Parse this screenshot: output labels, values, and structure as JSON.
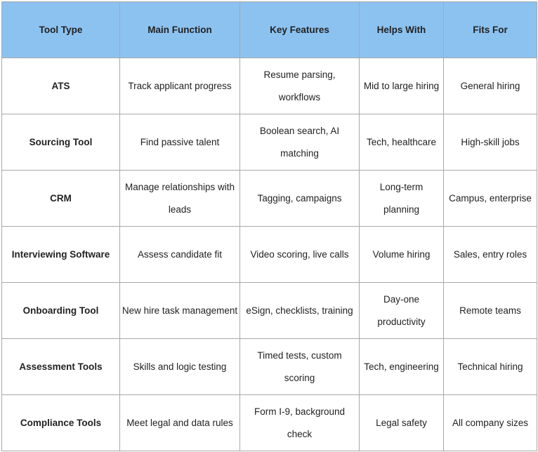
{
  "table": {
    "header": [
      "Tool Type",
      "Main Function",
      "Key Features",
      "Helps With",
      "Fits For"
    ],
    "rows": [
      [
        "ATS",
        "Track applicant progress",
        "Resume parsing, workflows",
        "Mid to large hiring",
        "General hiring"
      ],
      [
        "Sourcing Tool",
        "Find passive talent",
        "Boolean search, AI matching",
        "Tech, healthcare",
        "High-skill jobs"
      ],
      [
        "CRM",
        "Manage relationships with leads",
        "Tagging, campaigns",
        "Long-term planning",
        "Campus, enterprise"
      ],
      [
        "Interviewing Software",
        "Assess candidate fit",
        "Video scoring, live calls",
        "Volume hiring",
        "Sales, entry roles"
      ],
      [
        "Onboarding Tool",
        "New hire task management",
        "eSign, checklists, training",
        "Day-one productivity",
        "Remote teams"
      ],
      [
        "Assessment Tools",
        "Skills and logic testing",
        "Timed tests, custom scoring",
        "Tech, engineering",
        "Technical hiring"
      ],
      [
        "Compliance Tools",
        "Meet legal and data rules",
        "Form I-9, background check",
        "Legal safety",
        "All company sizes"
      ]
    ]
  }
}
